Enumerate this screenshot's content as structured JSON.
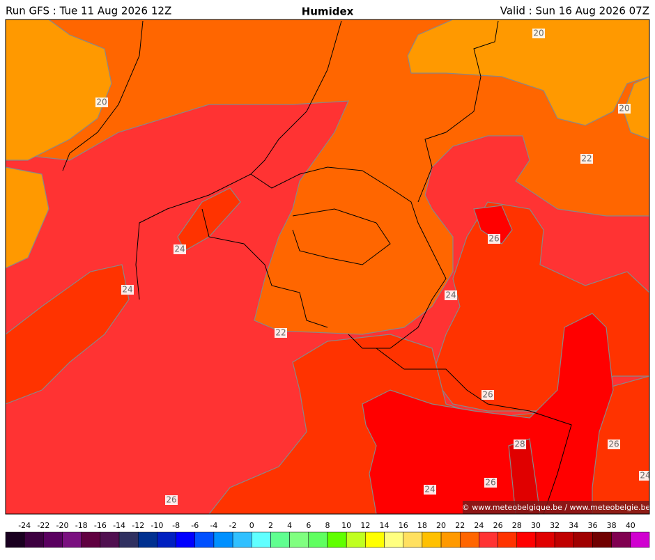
{
  "header": {
    "left": "Run GFS : Tue 11 Aug 2026 12Z",
    "title": "Humidex",
    "right": "Valid : Sun 16 Aug 2026 07Z"
  },
  "map": {
    "contour_labels": [
      20,
      20,
      20,
      22,
      24,
      24,
      22,
      24,
      26,
      26,
      28,
      26,
      26,
      24,
      26,
      24
    ],
    "credit": "© www.meteobelgique.be / www.meteobelgie.be"
  },
  "colorbar": {
    "ticks": [
      -24,
      -22,
      -20,
      -18,
      -16,
      -14,
      -12,
      -10,
      -8,
      -6,
      -4,
      -2,
      0,
      2,
      4,
      6,
      8,
      10,
      12,
      14,
      16,
      18,
      20,
      22,
      24,
      26,
      28,
      30,
      32,
      34,
      36,
      38,
      40
    ],
    "colors": [
      "#1a0020",
      "#3d0040",
      "#5a0060",
      "#7a1080",
      "#600040",
      "#501050",
      "#303060",
      "#003090",
      "#0020c0",
      "#0000ff",
      "#0050ff",
      "#0090ff",
      "#30c0ff",
      "#60ffff",
      "#60ff90",
      "#80ff80",
      "#60ff60",
      "#60ff00",
      "#c0ff20",
      "#ffff00",
      "#ffff80",
      "#ffe060",
      "#ffc000",
      "#ff9900",
      "#ff6600",
      "#ff3333",
      "#ff3300",
      "#ff0000",
      "#e00000",
      "#c00000",
      "#a00000",
      "#700000",
      "#800050",
      "#d000d0"
    ]
  }
}
